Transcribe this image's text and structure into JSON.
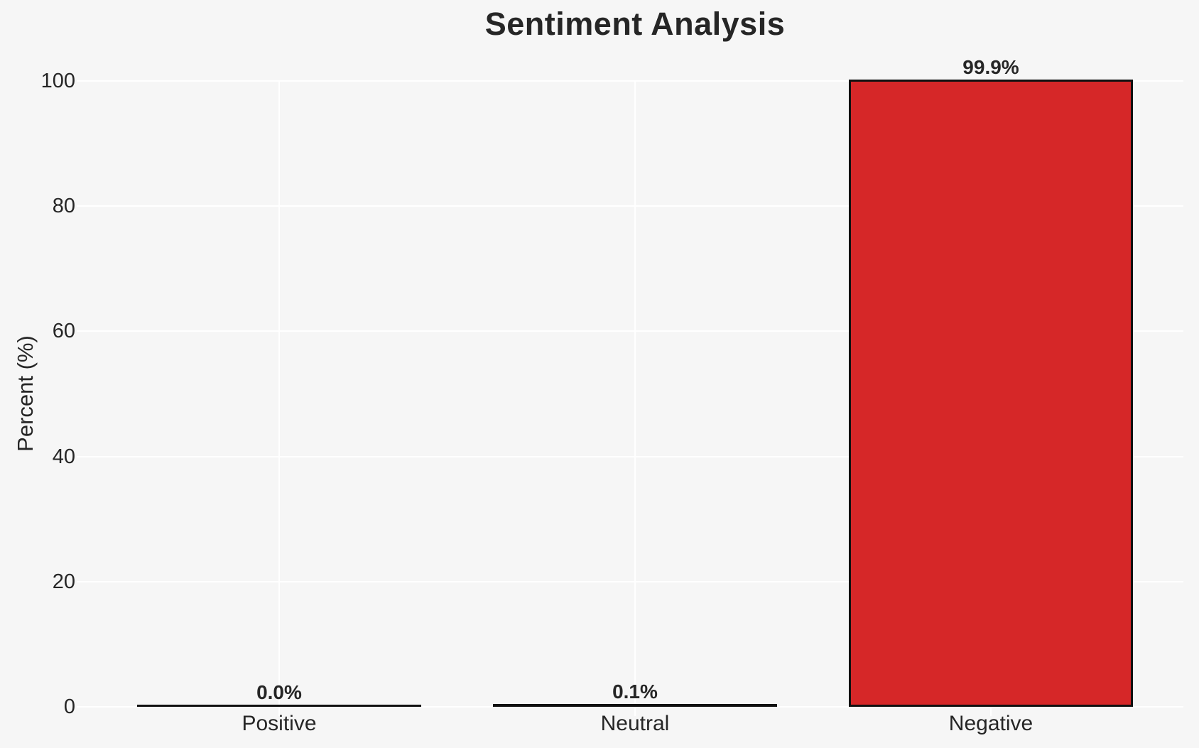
{
  "chart_data": {
    "type": "bar",
    "title": "Sentiment Analysis",
    "xlabel": "",
    "ylabel": "Percent (%)",
    "categories": [
      "Positive",
      "Neutral",
      "Negative"
    ],
    "values": [
      0.0,
      0.1,
      99.9
    ],
    "bar_labels": [
      "0.0%",
      "0.1%",
      "99.9%"
    ],
    "yticks": [
      0,
      20,
      40,
      60,
      80,
      100
    ],
    "ylim": [
      0,
      100
    ],
    "grid": "on",
    "legend": "none",
    "colors": {
      "bar_fill": "#d62728",
      "bar_edge": "#111111",
      "background": "#f6f6f6",
      "gridline": "#ffffff",
      "text": "#262626"
    }
  }
}
